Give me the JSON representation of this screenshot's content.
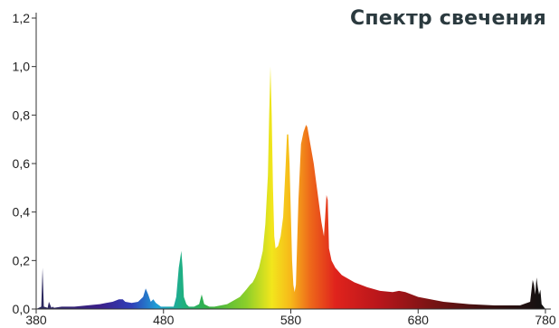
{
  "chart_data": {
    "type": "area",
    "title": "Спектр свечения",
    "xlabel": "",
    "ylabel": "",
    "xlim": [
      380,
      780
    ],
    "ylim": [
      0,
      1.2
    ],
    "x_ticks": [
      380,
      480,
      580,
      680,
      780
    ],
    "x_tick_labels": [
      "380",
      "480",
      "580",
      "680",
      "780"
    ],
    "y_ticks": [
      0.0,
      0.2,
      0.4,
      0.6,
      0.8,
      1.0,
      1.2
    ],
    "y_tick_labels": [
      "0,0",
      "0,2",
      "0,4",
      "0,6",
      "0,8",
      "1,0",
      "1,2"
    ],
    "grid": false,
    "legend": "none",
    "fill": "visible-spectrum gradient",
    "series": [
      {
        "x": [
          380,
          384,
          385,
          386,
          389,
          390,
          392,
          393,
          394,
          400,
          410,
          420,
          430,
          435,
          440,
          445,
          448,
          450,
          455,
          460,
          464,
          466,
          468,
          470,
          472,
          474,
          478,
          480,
          485,
          488,
          490,
          492,
          494,
          495,
          496,
          498,
          500,
          504,
          508,
          510,
          512,
          514,
          516,
          520,
          530,
          540,
          545,
          548,
          550,
          552,
          555,
          558,
          560,
          562,
          563,
          564,
          565,
          566,
          567,
          568,
          570,
          572,
          574,
          576,
          577,
          578,
          579,
          580,
          581,
          582,
          583,
          584,
          586,
          588,
          590,
          592,
          593,
          594,
          596,
          598,
          600,
          602,
          604,
          606,
          607,
          608,
          609,
          610,
          612,
          615,
          620,
          630,
          640,
          650,
          660,
          665,
          670,
          680,
          700,
          720,
          740,
          760,
          768,
          770,
          771,
          772,
          773,
          774,
          775,
          776,
          777,
          780
        ],
        "values": [
          0.0,
          0.01,
          0.17,
          0.01,
          0.005,
          0.03,
          0.005,
          0.01,
          0.005,
          0.01,
          0.01,
          0.015,
          0.02,
          0.025,
          0.03,
          0.04,
          0.04,
          0.03,
          0.025,
          0.03,
          0.05,
          0.085,
          0.06,
          0.03,
          0.04,
          0.025,
          0.01,
          0.01,
          0.01,
          0.01,
          0.05,
          0.17,
          0.24,
          0.17,
          0.05,
          0.02,
          0.01,
          0.01,
          0.02,
          0.06,
          0.02,
          0.015,
          0.01,
          0.01,
          0.02,
          0.05,
          0.08,
          0.1,
          0.11,
          0.13,
          0.17,
          0.24,
          0.35,
          0.55,
          0.8,
          1.0,
          0.8,
          0.5,
          0.3,
          0.25,
          0.26,
          0.3,
          0.38,
          0.6,
          0.72,
          0.72,
          0.6,
          0.4,
          0.2,
          0.1,
          0.07,
          0.1,
          0.45,
          0.68,
          0.73,
          0.76,
          0.75,
          0.72,
          0.66,
          0.6,
          0.52,
          0.44,
          0.36,
          0.3,
          0.38,
          0.47,
          0.45,
          0.25,
          0.2,
          0.17,
          0.14,
          0.11,
          0.09,
          0.075,
          0.07,
          0.075,
          0.07,
          0.05,
          0.03,
          0.02,
          0.015,
          0.015,
          0.03,
          0.12,
          0.1,
          0.06,
          0.13,
          0.09,
          0.06,
          0.08,
          0.02,
          0.0
        ]
      }
    ]
  }
}
